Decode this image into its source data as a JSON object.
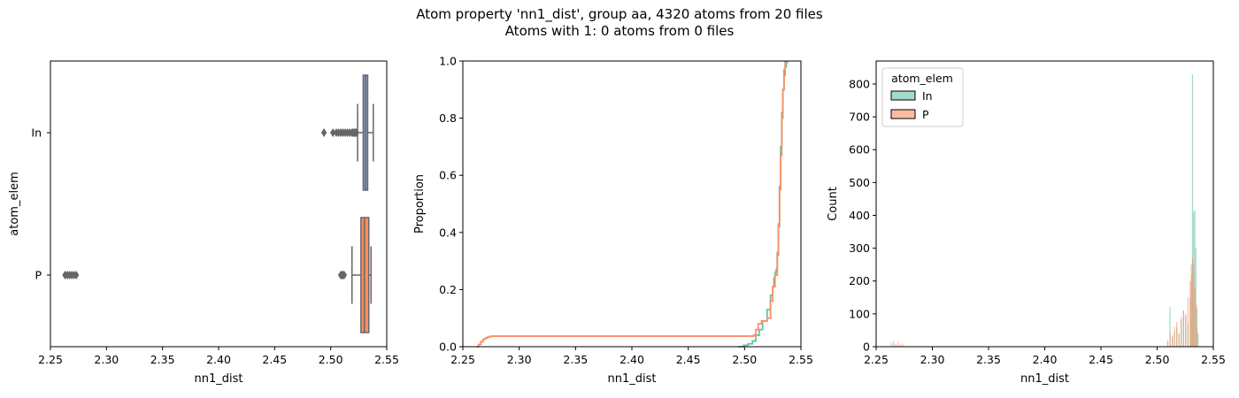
{
  "figure": {
    "title_line1": "Atom property 'nn1_dist', group aa, 4320 atoms from 20 files",
    "title_line2": "Atoms with 1: 0 atoms from 0 files"
  },
  "colors": {
    "In": "#66c2a5",
    "P": "#fc8d62",
    "box_In": "#8da0cb",
    "box_P": "#fc8d62",
    "edge": "#666666",
    "axes": "#000000"
  },
  "chart_data": [
    {
      "type": "box",
      "orientation": "horizontal",
      "xlabel": "nn1_dist",
      "ylabel": "atom_elem",
      "xlim": [
        2.25,
        2.55
      ],
      "xticks": [
        "2.25",
        "2.30",
        "2.35",
        "2.40",
        "2.45",
        "2.50",
        "2.55"
      ],
      "categories": [
        "In",
        "P"
      ],
      "series": [
        {
          "name": "In",
          "whisker_low": 2.524,
          "q1": 2.529,
          "median": 2.531,
          "q3": 2.533,
          "whisker_high": 2.538,
          "outliers": [
            2.494,
            2.502,
            2.505,
            2.507,
            2.509,
            2.511,
            2.513,
            2.515,
            2.517,
            2.519,
            2.52,
            2.521,
            2.522,
            2.523
          ]
        },
        {
          "name": "P",
          "whisker_low": 2.519,
          "q1": 2.527,
          "median": 2.53,
          "q3": 2.534,
          "whisker_high": 2.536,
          "outliers": [
            2.263,
            2.265,
            2.267,
            2.269,
            2.271,
            2.273,
            2.509,
            2.51,
            2.511,
            2.512
          ]
        }
      ]
    },
    {
      "type": "ecdf",
      "xlabel": "nn1_dist",
      "ylabel": "Proportion",
      "xlim": [
        2.25,
        2.55
      ],
      "ylim": [
        0,
        1
      ],
      "xticks": [
        "2.25",
        "2.30",
        "2.35",
        "2.40",
        "2.45",
        "2.50",
        "2.55"
      ],
      "yticks": [
        "0.0",
        "0.2",
        "0.4",
        "0.6",
        "0.8",
        "1.0"
      ],
      "series": [
        {
          "name": "In",
          "x": [
            2.494,
            2.499,
            2.503,
            2.507,
            2.51,
            2.513,
            2.516,
            2.52,
            2.523,
            2.525,
            2.526,
            2.527,
            2.528,
            2.529,
            2.53,
            2.531,
            2.532,
            2.533,
            2.534,
            2.535,
            2.536,
            2.537,
            2.538
          ],
          "y": [
            0.0,
            0.005,
            0.01,
            0.02,
            0.04,
            0.06,
            0.09,
            0.13,
            0.18,
            0.21,
            0.24,
            0.26,
            0.27,
            0.32,
            0.42,
            0.56,
            0.7,
            0.82,
            0.9,
            0.95,
            0.98,
            0.995,
            1.0
          ]
        },
        {
          "name": "P",
          "x": [
            2.262,
            2.264,
            2.266,
            2.268,
            2.27,
            2.272,
            2.274,
            2.276,
            2.3,
            2.4,
            2.5,
            2.508,
            2.51,
            2.512,
            2.515,
            2.52,
            2.523,
            2.525,
            2.527,
            2.529,
            2.53,
            2.531,
            2.532,
            2.533,
            2.534,
            2.535,
            2.536
          ],
          "y": [
            0.0,
            0.008,
            0.018,
            0.026,
            0.031,
            0.034,
            0.036,
            0.037,
            0.037,
            0.037,
            0.037,
            0.04,
            0.06,
            0.08,
            0.09,
            0.1,
            0.16,
            0.21,
            0.25,
            0.33,
            0.43,
            0.55,
            0.67,
            0.8,
            0.9,
            0.97,
            1.0
          ]
        }
      ]
    },
    {
      "type": "histogram",
      "xlabel": "nn1_dist",
      "ylabel": "Count",
      "xlim": [
        2.25,
        2.55
      ],
      "ylim": [
        0,
        870
      ],
      "xticks": [
        "2.25",
        "2.30",
        "2.35",
        "2.40",
        "2.45",
        "2.50",
        "2.55"
      ],
      "yticks": [
        "0",
        "100",
        "200",
        "300",
        "400",
        "500",
        "600",
        "700",
        "800"
      ],
      "legend": {
        "title": "atom_elem",
        "placement": "upper-left",
        "entries": [
          "In",
          "P"
        ]
      },
      "series": [
        {
          "name": "In",
          "x": [
            2.509,
            2.511,
            2.513,
            2.515,
            2.517,
            2.519,
            2.521,
            2.523,
            2.525,
            2.527,
            2.529,
            2.53,
            2.531,
            2.532,
            2.533,
            2.534,
            2.535,
            2.536
          ],
          "counts": [
            15,
            120,
            30,
            45,
            60,
            40,
            80,
            110,
            95,
            70,
            150,
            250,
            830,
            410,
            415,
            300,
            120,
            40
          ]
        },
        {
          "name": "P",
          "x": [
            2.263,
            2.265,
            2.267,
            2.269,
            2.271,
            2.273,
            2.509,
            2.511,
            2.513,
            2.515,
            2.517,
            2.519,
            2.521,
            2.523,
            2.525,
            2.527,
            2.529,
            2.53,
            2.531,
            2.532,
            2.533,
            2.534,
            2.535
          ],
          "counts": [
            12,
            18,
            8,
            14,
            6,
            10,
            20,
            45,
            35,
            60,
            75,
            40,
            90,
            110,
            100,
            150,
            200,
            220,
            270,
            250,
            180,
            130,
            60
          ]
        }
      ]
    }
  ]
}
